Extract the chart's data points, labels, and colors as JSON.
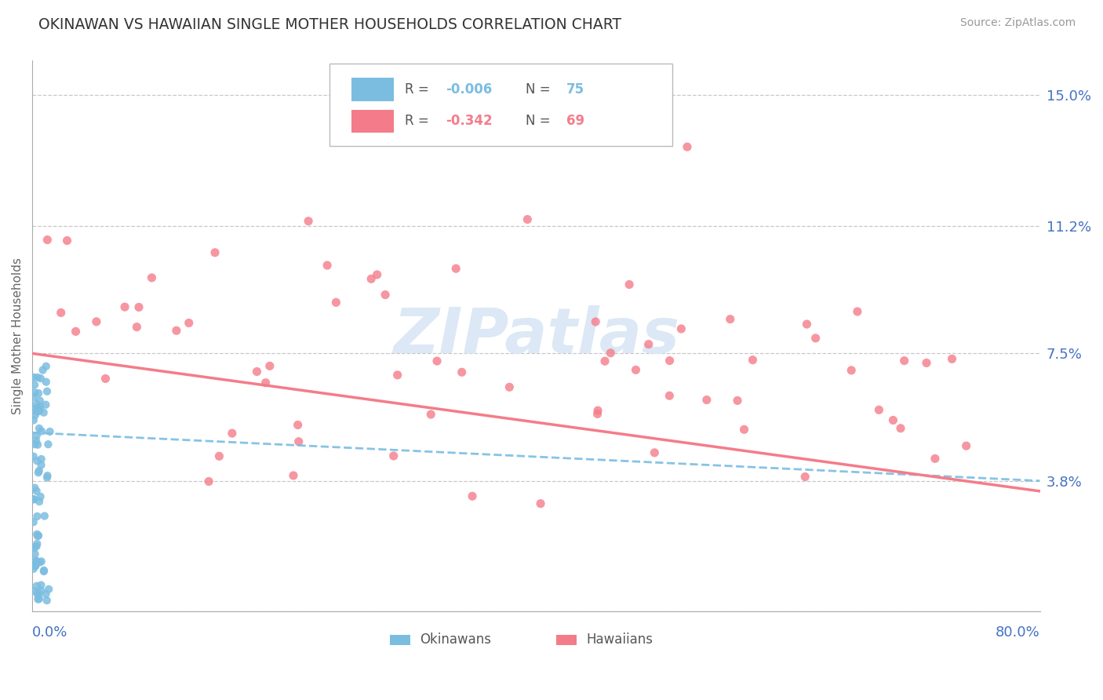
{
  "title": "OKINAWAN VS HAWAIIAN SINGLE MOTHER HOUSEHOLDS CORRELATION CHART",
  "source_text": "Source: ZipAtlas.com",
  "ylabel": "Single Mother Households",
  "yticks": [
    0.0,
    0.038,
    0.075,
    0.112,
    0.15
  ],
  "ytick_labels": [
    "",
    "3.8%",
    "7.5%",
    "11.2%",
    "15.0%"
  ],
  "xlim": [
    0.0,
    0.8
  ],
  "ylim": [
    0.0,
    0.16
  ],
  "okinawan_R": -0.006,
  "okinawan_N": 75,
  "hawaiian_R": -0.342,
  "hawaiian_N": 69,
  "okinawan_color": "#7bbde0",
  "hawaiian_color": "#f47c8a",
  "title_color": "#333333",
  "axis_label_color": "#4472c4",
  "grid_color": "#c8c8c8",
  "watermark_color": "#dce8f5",
  "legend_label_okinawan": "Okinawans",
  "legend_label_hawaiian": "Hawaiians"
}
